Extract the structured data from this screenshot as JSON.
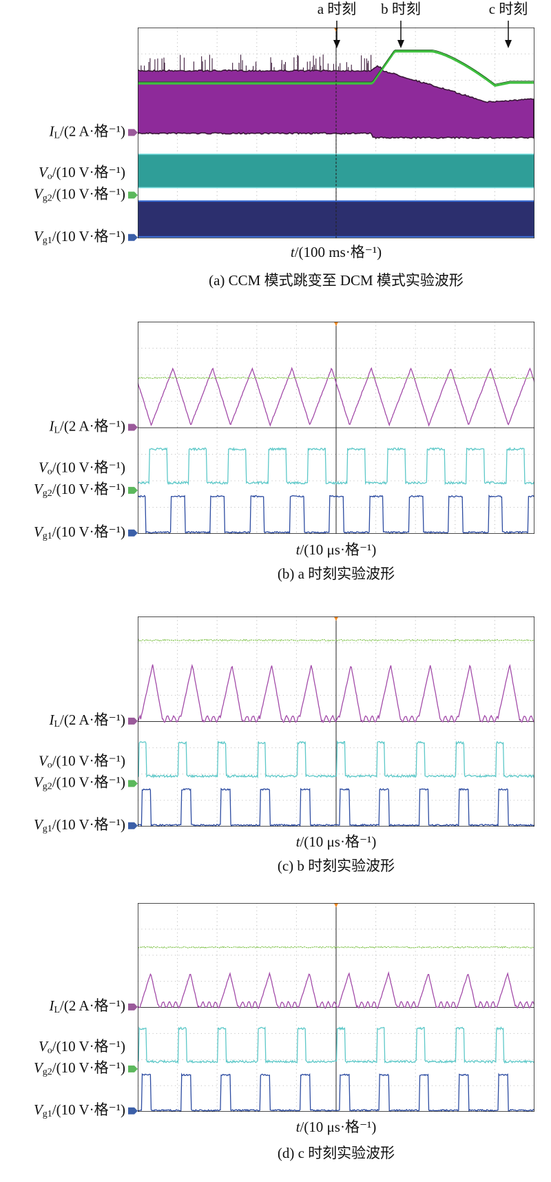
{
  "panels": [
    {
      "annotations": [
        "a 时刻",
        "b 时刻",
        "c 时刻"
      ],
      "labels": [
        {
          "symbol": "I",
          "sub": "L",
          "unit": "/(2 A·格⁻¹)"
        },
        {
          "symbol": "V",
          "sub": "o",
          "unit": "/(10 V·格⁻¹)"
        },
        {
          "symbol": "V",
          "sub": "g2",
          "unit": "/(10 V·格⁻¹)"
        },
        {
          "symbol": "V",
          "sub": "g1",
          "unit": "/(10 V·格⁻¹)"
        }
      ],
      "time_axis": {
        "symbol": "t",
        "unit": "/(100 ms·格⁻¹)"
      },
      "caption": "(a) CCM 模式跳变至 DCM 模式实验波形"
    },
    {
      "labels": [
        {
          "symbol": "I",
          "sub": "L",
          "unit": "/(2 A·格⁻¹)"
        },
        {
          "symbol": "V",
          "sub": "o",
          "unit": "/(10 V·格⁻¹)"
        },
        {
          "symbol": "V",
          "sub": "g2",
          "unit": "/(10 V·格⁻¹)"
        },
        {
          "symbol": "V",
          "sub": "g1",
          "unit": "/(10 V·格⁻¹)"
        }
      ],
      "time_axis": {
        "symbol": "t",
        "unit": "/(10 μs·格⁻¹)"
      },
      "caption": "(b) a 时刻实验波形"
    },
    {
      "labels": [
        {
          "symbol": "I",
          "sub": "L",
          "unit": "/(2 A·格⁻¹)"
        },
        {
          "symbol": "V",
          "sub": "o",
          "unit": "/(10 V·格⁻¹)"
        },
        {
          "symbol": "V",
          "sub": "g2",
          "unit": "/(10 V·格⁻¹)"
        },
        {
          "symbol": "V",
          "sub": "g1",
          "unit": "/(10 V·格⁻¹)"
        }
      ],
      "time_axis": {
        "symbol": "t",
        "unit": "/(10 μs·格⁻¹)"
      },
      "caption": "(c) b 时刻实验波形"
    },
    {
      "labels": [
        {
          "symbol": "I",
          "sub": "L",
          "unit": "/(2 A·格⁻¹)"
        },
        {
          "symbol": "V",
          "sub": "o",
          "unit": "/(10 V·格⁻¹)"
        },
        {
          "symbol": "V",
          "sub": "g2",
          "unit": "/(10 V·格⁻¹)"
        },
        {
          "symbol": "V",
          "sub": "g1",
          "unit": "/(10 V·格⁻¹)"
        }
      ],
      "time_axis": {
        "symbol": "t",
        "unit": "/(10 μs·格⁻¹)"
      },
      "caption": "(d) c 时刻实验波形"
    }
  ]
}
